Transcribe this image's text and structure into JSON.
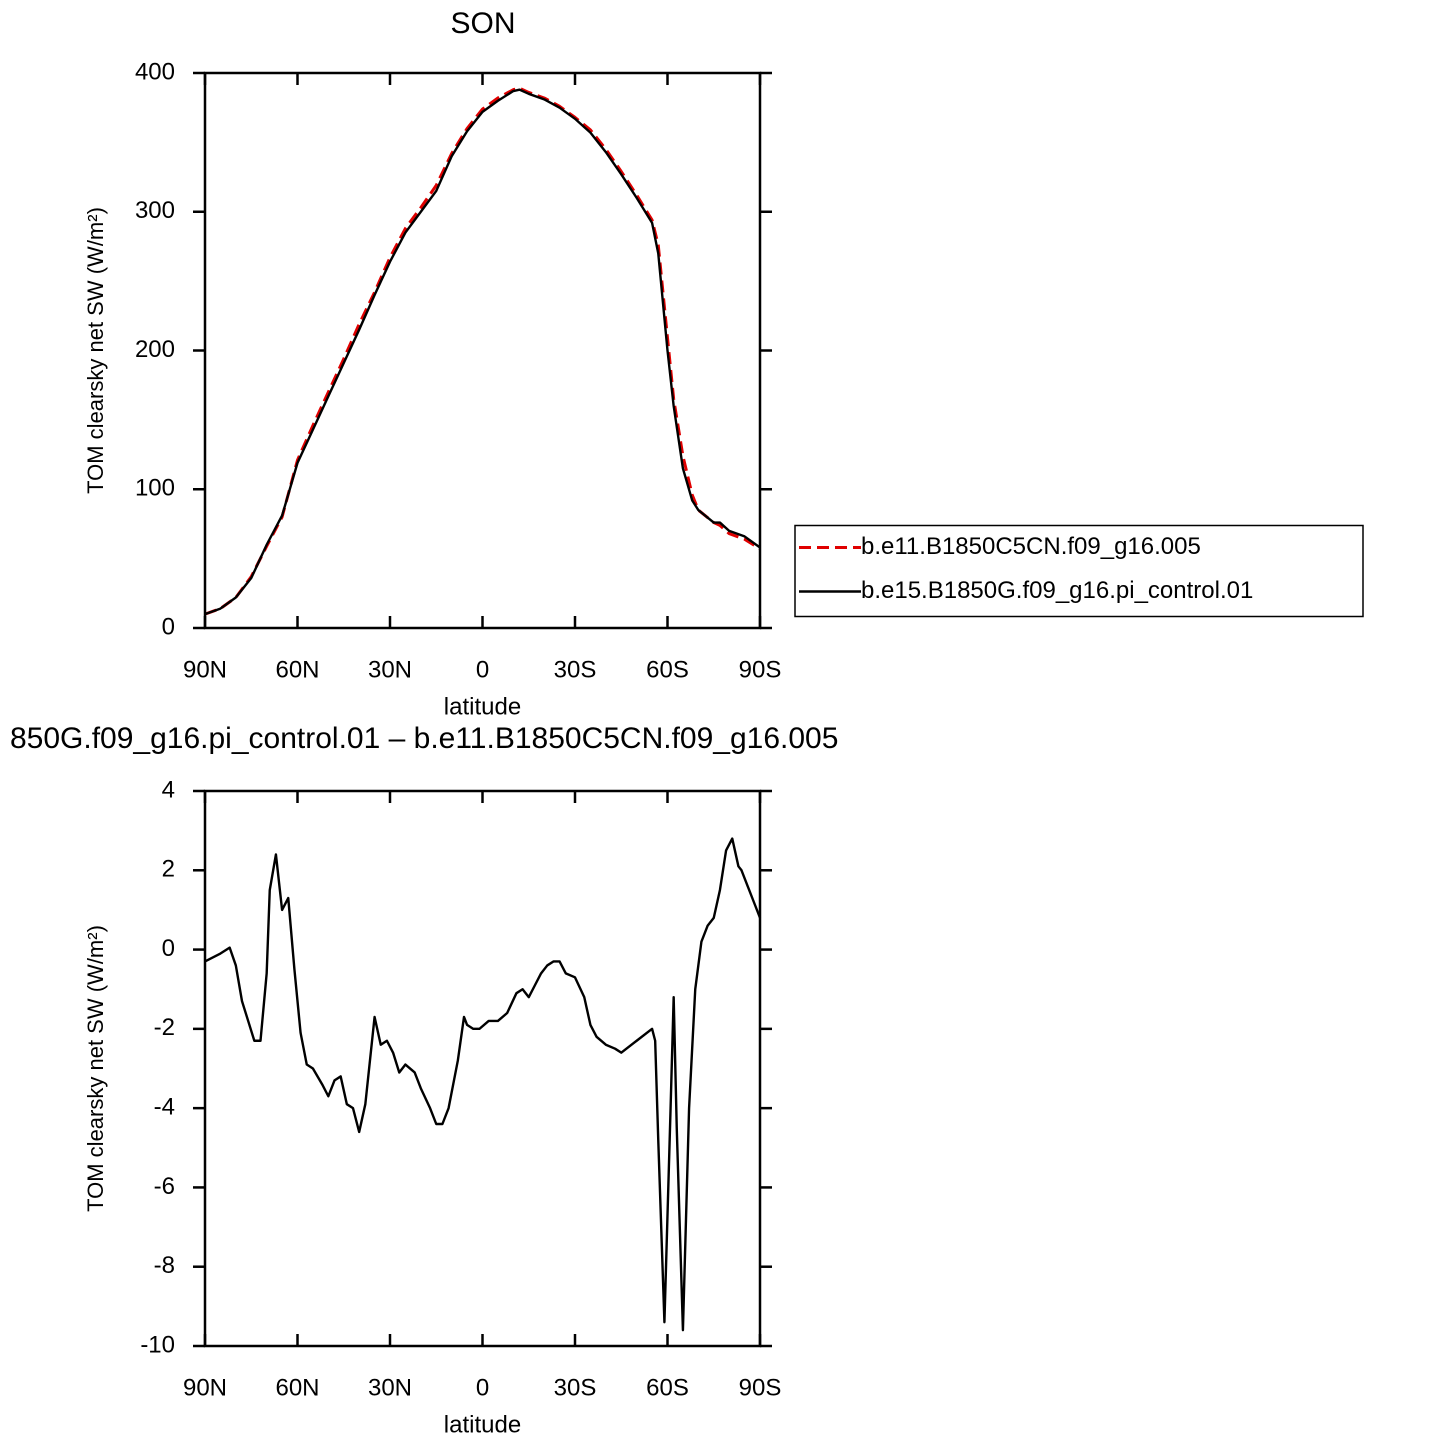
{
  "chart_data": [
    {
      "type": "line",
      "title": "SON",
      "xlabel": "latitude",
      "ylabel": "TOM clearsky net SW (W/m²)",
      "xlim": [
        90,
        -90
      ],
      "xticks": [
        {
          "value": 90,
          "label": "90N"
        },
        {
          "value": 60,
          "label": "60N"
        },
        {
          "value": 30,
          "label": "30N"
        },
        0,
        {
          "value": -30,
          "label": "30S"
        },
        {
          "value": -60,
          "label": "60S"
        },
        {
          "value": -90,
          "label": "90S"
        }
      ],
      "ylim": [
        0,
        400
      ],
      "yticks": [
        0,
        100,
        200,
        300,
        400
      ],
      "legend": "right",
      "x": [
        90,
        85,
        80,
        75,
        70,
        65,
        60,
        55,
        50,
        45,
        40,
        35,
        30,
        25,
        20,
        15,
        10,
        5,
        0,
        -5,
        -10,
        -12,
        -15,
        -20,
        -25,
        -30,
        -35,
        -40,
        -45,
        -50,
        -55,
        -57,
        -60,
        -62,
        -65,
        -68,
        -70,
        -75,
        -77,
        -80,
        -85,
        -90
      ],
      "series": [
        {
          "name": "b.e11.B1850C5CN.f09_g16.005",
          "color": "#e00000",
          "dash": "dashed",
          "values": [
            10,
            14,
            22,
            37,
            59,
            80,
            121,
            146,
            170,
            194,
            219,
            242,
            267,
            288,
            303,
            319,
            342,
            360,
            374,
            382,
            388,
            389,
            386,
            382,
            376,
            368,
            359,
            345,
            329,
            312,
            294,
            276,
            209,
            165,
            124,
            96,
            85,
            76,
            74,
            68,
            64,
            57
          ]
        },
        {
          "name": "b.e15.B1850G.f09_g16.pi_control.01",
          "color": "#000000",
          "dash": "solid",
          "values": [
            10,
            14,
            22,
            36,
            60,
            81,
            119,
            143,
            167,
            191,
            215,
            240,
            264,
            285,
            300,
            315,
            340,
            358,
            372,
            380,
            387,
            388,
            385,
            381,
            375,
            367,
            357,
            343,
            327,
            310,
            292,
            270,
            200,
            160,
            115,
            92,
            85,
            76,
            76,
            70,
            66,
            58
          ]
        }
      ]
    },
    {
      "type": "line",
      "title": "850G.f09_g16.pi_control.01 – b.e11.B1850C5CN.f09_g16.005",
      "xlabel": "latitude",
      "ylabel": "TOM clearsky net SW (W/m²)",
      "xlim": [
        90,
        -90
      ],
      "xticks": [
        {
          "value": 90,
          "label": "90N"
        },
        {
          "value": 60,
          "label": "60N"
        },
        {
          "value": 30,
          "label": "30N"
        },
        0,
        {
          "value": -30,
          "label": "30S"
        },
        {
          "value": -60,
          "label": "60S"
        },
        {
          "value": -90,
          "label": "90S"
        }
      ],
      "ylim": [
        -10,
        4
      ],
      "yticks": [
        -10,
        -8,
        -6,
        -4,
        -2,
        0,
        2,
        4
      ],
      "x": [
        90,
        85,
        82,
        80,
        78,
        76,
        74,
        72,
        70,
        69,
        67,
        65,
        63,
        61,
        59,
        57,
        55,
        52,
        50,
        48,
        46,
        44,
        42,
        40,
        38,
        35,
        33,
        31,
        29,
        27,
        25,
        22,
        20,
        17,
        15,
        13,
        11,
        8,
        6,
        5,
        3,
        1,
        -2,
        -5,
        -8,
        -11,
        -13,
        -15,
        -17,
        -19,
        -21,
        -23,
        -25,
        -27,
        -30,
        -33,
        -35,
        -37,
        -40,
        -43,
        -45,
        -50,
        -55,
        -56,
        -57,
        -59,
        -61,
        -62,
        -63,
        -65,
        -67,
        -69,
        -71,
        -73,
        -75,
        -77,
        -79,
        -81,
        -83,
        -84,
        -86,
        -88,
        -90
      ],
      "series": [
        {
          "color": "#000000",
          "dash": "solid",
          "values": [
            -0.3,
            -0.1,
            0.05,
            -0.4,
            -1.3,
            -1.8,
            -2.3,
            -2.3,
            -0.6,
            1.5,
            2.4,
            1.0,
            1.3,
            -0.5,
            -2.1,
            -2.9,
            -3.0,
            -3.4,
            -3.7,
            -3.3,
            -3.2,
            -3.9,
            -4.0,
            -4.6,
            -3.9,
            -1.7,
            -2.4,
            -2.3,
            -2.6,
            -3.1,
            -2.9,
            -3.1,
            -3.5,
            -4.0,
            -4.4,
            -4.4,
            -4.0,
            -2.8,
            -1.7,
            -1.9,
            -2.0,
            -2.0,
            -1.8,
            -1.8,
            -1.6,
            -1.1,
            -1.0,
            -1.2,
            -0.9,
            -0.6,
            -0.4,
            -0.3,
            -0.3,
            -0.6,
            -0.7,
            -1.2,
            -1.9,
            -2.2,
            -2.4,
            -2.5,
            -2.6,
            -2.3,
            -2.0,
            -2.3,
            -4.8,
            -9.4,
            -4.0,
            -1.2,
            -4.5,
            -9.6,
            -4.0,
            -1.0,
            0.2,
            0.6,
            0.8,
            1.5,
            2.5,
            2.8,
            2.1,
            2.0,
            1.6,
            1.2,
            0.8
          ]
        }
      ]
    }
  ]
}
